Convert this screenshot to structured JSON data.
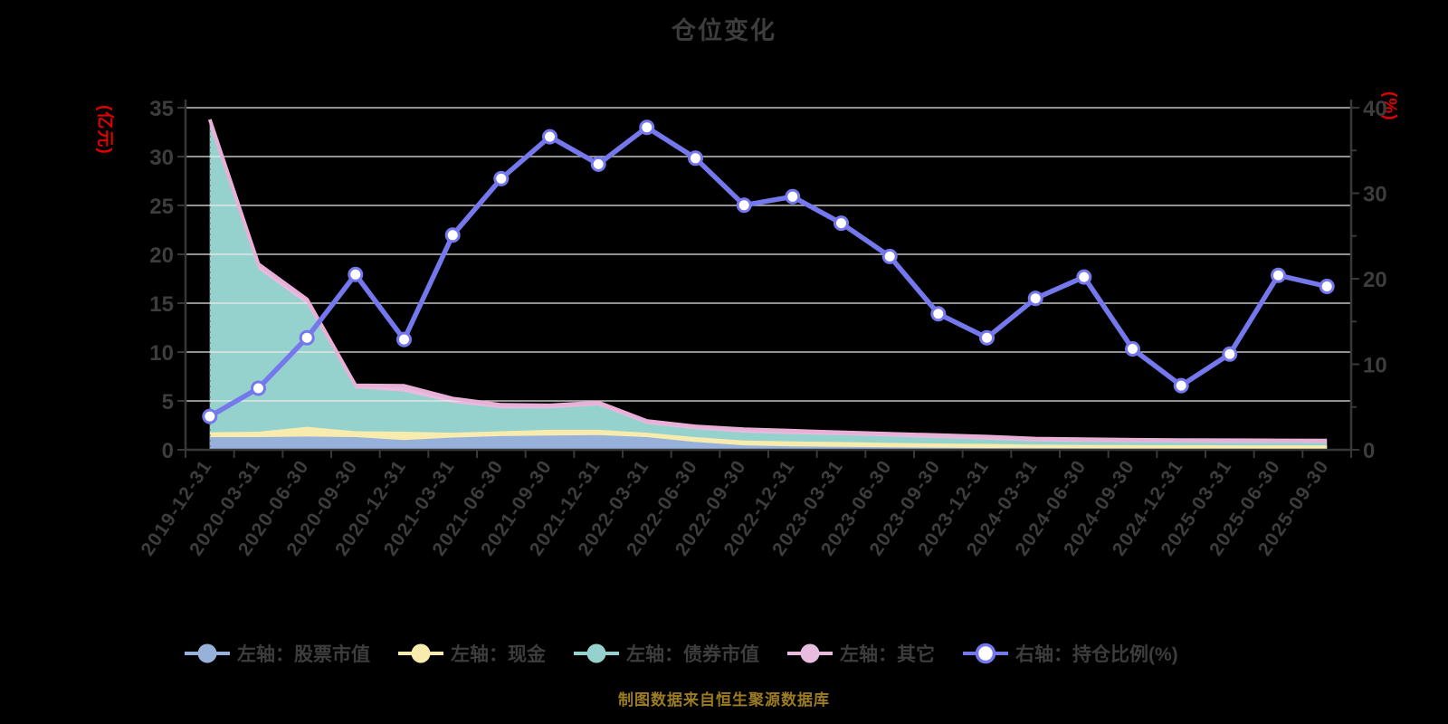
{
  "chart_data": {
    "type": "stacked-area + line (dual axis)",
    "title": "仓位变化",
    "source_note": "制图数据来自恒生聚源数据库",
    "background": "#000000",
    "grid": true,
    "grid_color": "#eeeeee",
    "axis_line_color": "#383838",
    "text_color": "#3d3d3d",
    "legend_position": "bottom",
    "x_dates": [
      "2019-12-31",
      "2020-03-31",
      "2020-06-30",
      "2020-09-30",
      "2020-12-31",
      "2021-03-31",
      "2021-06-30",
      "2021-09-30",
      "2021-12-31",
      "2022-03-31",
      "2022-06-30",
      "2022-09-30",
      "2022-12-31",
      "2023-03-31",
      "2023-06-30",
      "2023-09-30",
      "2023-12-31",
      "2024-03-31",
      "2024-06-30",
      "2024-09-30",
      "2024-12-31",
      "2025-03-31",
      "2025-06-30",
      "2025-09-30"
    ],
    "left_axis": {
      "unit": "(亿元)",
      "min": 0,
      "max": 35,
      "ticks": [
        0,
        5,
        10,
        15,
        20,
        25,
        30,
        35
      ],
      "unit_color": "#e00000"
    },
    "right_axis": {
      "unit": "(%)",
      "min": 0,
      "max": 40,
      "ticks": [
        0,
        10,
        20,
        30,
        40
      ],
      "minor_ticks": [
        5,
        15,
        25,
        35
      ],
      "unit_color": "#e00000"
    },
    "series": [
      {
        "name": "左轴：股票市值",
        "axis": "left",
        "type": "stacked-area",
        "color": "#97b1db",
        "values": [
          1.3,
          1.3,
          1.35,
          1.3,
          1.0,
          1.25,
          1.4,
          1.45,
          1.5,
          1.3,
          0.8,
          0.45,
          0.35,
          0.3,
          0.25,
          0.2,
          0.18,
          0.16,
          0.15,
          0.13,
          0.12,
          0.11,
          0.1,
          0.1
        ]
      },
      {
        "name": "左轴：现金",
        "axis": "left",
        "type": "stacked-area",
        "color": "#f7ecae",
        "values": [
          0.5,
          0.55,
          1.0,
          0.6,
          0.85,
          0.5,
          0.5,
          0.6,
          0.55,
          0.45,
          0.5,
          0.5,
          0.5,
          0.5,
          0.45,
          0.45,
          0.42,
          0.37,
          0.35,
          0.35,
          0.35,
          0.35,
          0.35,
          0.35
        ]
      },
      {
        "name": "左轴：债券市值",
        "axis": "left",
        "type": "stacked-area",
        "color": "#96d2cd",
        "values": [
          31.3,
          16.65,
          12.55,
          4.4,
          4.1,
          3.05,
          2.35,
          2.2,
          2.5,
          0.9,
          0.8,
          0.8,
          0.75,
          0.7,
          0.65,
          0.55,
          0.45,
          0.34,
          0.3,
          0.28,
          0.27,
          0.26,
          0.26,
          0.25
        ]
      },
      {
        "name": "左轴：其它",
        "axis": "left",
        "type": "stacked-area",
        "color": "#e7bcdf",
        "edge_color": "#e8b0d7",
        "values": [
          0.7,
          0.5,
          0.5,
          0.3,
          0.6,
          0.45,
          0.35,
          0.3,
          0.3,
          0.3,
          0.3,
          0.35,
          0.35,
          0.3,
          0.3,
          0.3,
          0.3,
          0.28,
          0.28,
          0.27,
          0.26,
          0.26,
          0.25,
          0.25
        ]
      },
      {
        "name": "右轴：持仓比例(%)",
        "axis": "right",
        "type": "line",
        "color": "#7577ed",
        "marker": "white-circle",
        "values": [
          3.9,
          7.2,
          13.1,
          20.5,
          12.9,
          25.1,
          31.7,
          36.6,
          33.4,
          37.7,
          34.1,
          28.6,
          29.6,
          26.5,
          22.6,
          15.9,
          13.1,
          17.7,
          20.2,
          11.8,
          7.5,
          11.2,
          20.4,
          19.1
        ]
      }
    ]
  }
}
